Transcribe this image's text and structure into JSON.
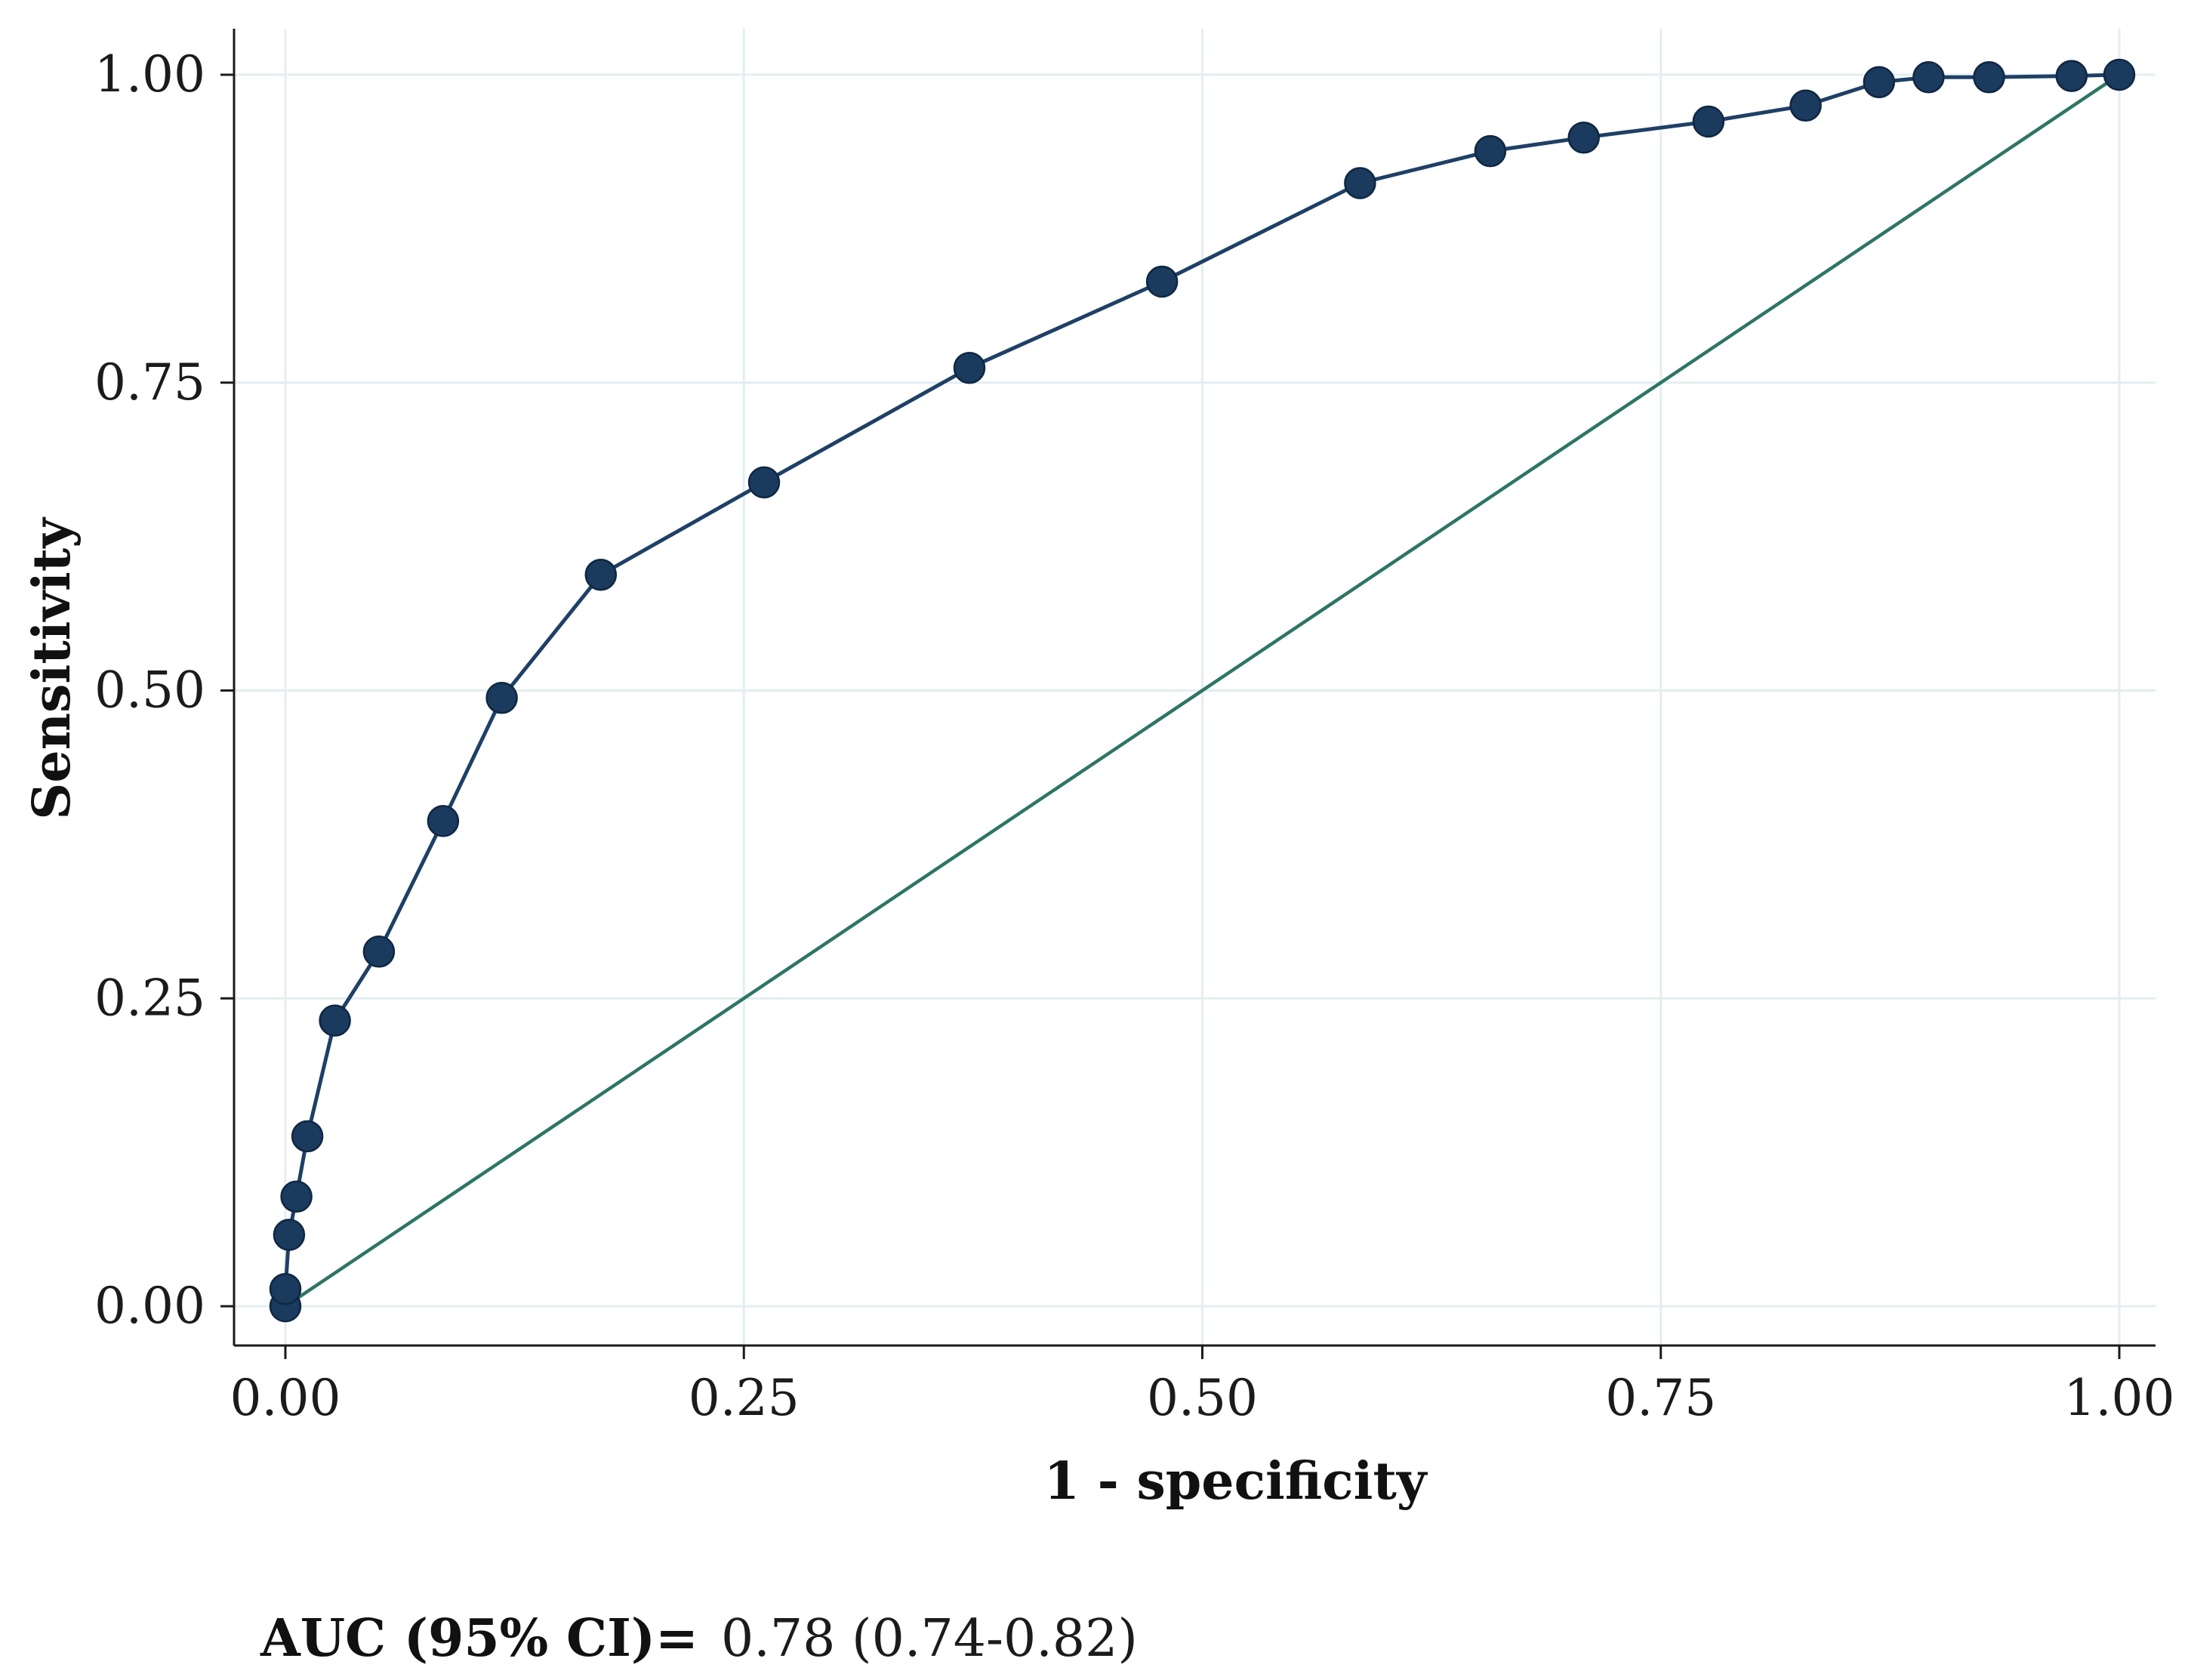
{
  "chart_data": {
    "type": "line",
    "title": "",
    "xlabel": "1 - specificity",
    "ylabel": "Sensitivity",
    "xlim": [
      0,
      1
    ],
    "ylim": [
      0,
      1
    ],
    "grid": true,
    "x_ticks": [
      "0.00",
      "0.25",
      "0.50",
      "0.75",
      "1.00"
    ],
    "y_ticks": [
      "0.00",
      "0.25",
      "0.50",
      "0.75",
      "1.00"
    ],
    "series": [
      {
        "name": "ROC curve",
        "color": "#1f4066",
        "markers": true,
        "x": [
          0.0,
          0.0,
          0.002,
          0.006,
          0.012,
          0.027,
          0.051,
          0.086,
          0.118,
          0.172,
          0.261,
          0.373,
          0.478,
          0.586,
          0.657,
          0.708,
          0.776,
          0.829,
          0.869,
          0.896,
          0.929,
          0.974,
          1.0
        ],
        "y": [
          0.0,
          0.014,
          0.058,
          0.089,
          0.138,
          0.232,
          0.288,
          0.394,
          0.494,
          0.594,
          0.669,
          0.762,
          0.832,
          0.912,
          0.938,
          0.949,
          0.962,
          0.975,
          0.994,
          0.998,
          0.998,
          0.999,
          1.0
        ]
      },
      {
        "name": "Reference line",
        "color": "#2e7566",
        "markers": false,
        "x": [
          0,
          1
        ],
        "y": [
          0,
          1
        ]
      }
    ],
    "annotation": {
      "label": "AUC (95% CI)=",
      "value": "0.78 (0.74-0.82)"
    }
  },
  "colors": {
    "curve": "#1f4066",
    "marker": "#1a3a5e",
    "reference": "#2e7566",
    "grid": "#e4eef0",
    "axis": "#1b1b1b"
  }
}
